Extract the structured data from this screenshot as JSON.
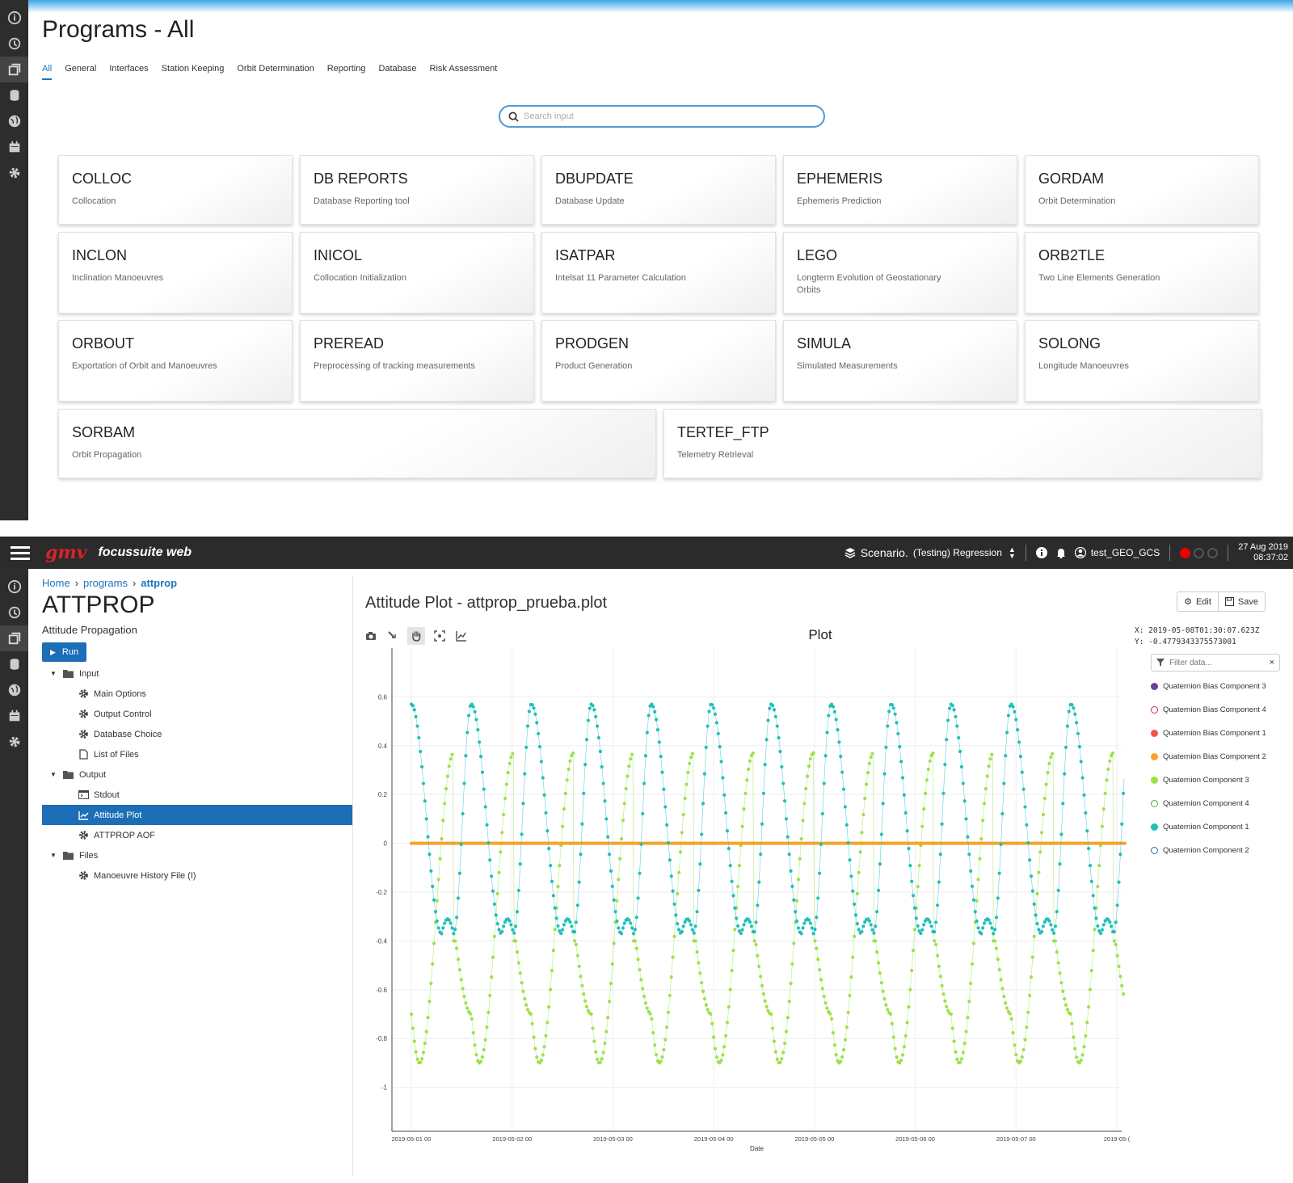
{
  "screen1": {
    "title": "Programs - All",
    "tabs": [
      "All",
      "General",
      "Interfaces",
      "Station Keeping",
      "Orbit Determination",
      "Reporting",
      "Database",
      "Risk Assessment"
    ],
    "search_placeholder": "Search input",
    "programs": [
      {
        "name": "COLLOC",
        "desc": "Collocation"
      },
      {
        "name": "DB REPORTS",
        "desc": "Database Reporting tool"
      },
      {
        "name": "DBUPDATE",
        "desc": "Database Update"
      },
      {
        "name": "EPHEMERIS",
        "desc": "Ephemeris Prediction"
      },
      {
        "name": "GORDAM",
        "desc": "Orbit Determination"
      },
      {
        "name": "INCLON",
        "desc": "Inclination Manoeuvres"
      },
      {
        "name": "INICOL",
        "desc": "Collocation Initialization"
      },
      {
        "name": "ISATPAR",
        "desc": "Intelsat 11 Parameter Calculation"
      },
      {
        "name": "LEGO",
        "desc": "Longterm Evolution of Geostationary Orbits"
      },
      {
        "name": "ORB2TLE",
        "desc": "Two Line Elements Generation"
      },
      {
        "name": "ORBOUT",
        "desc": "Exportation of Orbit and Manoeuvres"
      },
      {
        "name": "PREREAD",
        "desc": "Preprocessing of tracking measurements"
      },
      {
        "name": "PRODGEN",
        "desc": "Product Generation"
      },
      {
        "name": "SIMULA",
        "desc": "Simulated Measurements"
      },
      {
        "name": "SOLONG",
        "desc": "Longitude Manoeuvres"
      },
      {
        "name": "SORBAM",
        "desc": "Orbit Propagation"
      },
      {
        "name": "TERTEF_FTP",
        "desc": "Telemetry Retrieval"
      }
    ]
  },
  "screen2": {
    "app": {
      "logo": "gmv",
      "name": "focussuite web"
    },
    "header": {
      "scenario_label": "Scenario.",
      "scenario_value": "(Testing) Regression",
      "user": "test_GEO_GCS",
      "date": "27 Aug 2019",
      "time": "08:37:02"
    },
    "breadcrumb": [
      "Home",
      "programs",
      "attprop"
    ],
    "program": {
      "title": "ATTPROP",
      "subtitle": "Attitude Propagation",
      "run_label": "Run"
    },
    "tree": [
      {
        "label": "Input",
        "level": 0,
        "icon": "folder-open-icon",
        "name": "tree-input"
      },
      {
        "label": "Main Options",
        "level": 1,
        "icon": "gear-icon",
        "name": "tree-main-options"
      },
      {
        "label": "Output Control",
        "level": 1,
        "icon": "gear-icon",
        "name": "tree-output-control"
      },
      {
        "label": "Database Choice",
        "level": 1,
        "icon": "gear-icon",
        "name": "tree-database-choice"
      },
      {
        "label": "List of Files",
        "level": 1,
        "icon": "file-icon",
        "name": "tree-list-of-files"
      },
      {
        "label": "Output",
        "level": 0,
        "icon": "folder-open-icon",
        "name": "tree-output"
      },
      {
        "label": "Stdout",
        "level": 1,
        "icon": "terminal-icon",
        "name": "tree-stdout"
      },
      {
        "label": "Attitude Plot",
        "level": 1,
        "icon": "line-chart-icon",
        "name": "tree-attitude-plot",
        "selected": true
      },
      {
        "label": "ATTPROP AOF",
        "level": 1,
        "icon": "gear-icon",
        "name": "tree-attprop-aof"
      },
      {
        "label": "Files",
        "level": 0,
        "icon": "folder-open-icon",
        "name": "tree-files"
      },
      {
        "label": "Manoeuvre History File (I)",
        "level": 1,
        "icon": "gear-icon",
        "name": "tree-manoeuvre-history"
      }
    ],
    "plot_panel": {
      "title": "Attitude Plot - attprop_prueba.plot",
      "edit_label": "Edit",
      "save_label": "Save",
      "readout_x": "X: 2019-05-08T01:30:07.623Z",
      "readout_y": "Y: -0.4779343375573001",
      "filter_placeholder": "Filter data..."
    }
  },
  "chart_data": {
    "type": "scatter",
    "title": "Plot",
    "xlabel": "Date",
    "ylabel": "",
    "x_ticks": [
      "2019-05-01 00",
      "2019-05-02 00",
      "2019-05-03 00",
      "2019-05-04 00",
      "2019-05-05 00",
      "2019-05-06 00",
      "2019-05-07 00",
      "2019-05-("
    ],
    "y_ticks": [
      "0.6",
      "0.4",
      "0.2",
      "0",
      "-0.2",
      "-0.4",
      "-0.6",
      "-0.8",
      "-1"
    ],
    "x_range_days": [
      0,
      7.1
    ],
    "ylim": [
      -1.18,
      0.8
    ],
    "grid": true,
    "legend_position": "right",
    "series": [
      {
        "name": "Quaternion Bias Component 3",
        "color": "#6a3fa0",
        "hollow": false,
        "plotted": "zero"
      },
      {
        "name": "Quaternion Bias Component 4",
        "color": "#d6246e",
        "hollow": true,
        "plotted": "zero"
      },
      {
        "name": "Quaternion Bias Component 1",
        "color": "#f0524a",
        "hollow": false,
        "plotted": "zero"
      },
      {
        "name": "Quaternion Bias Component 2",
        "color": "#f5a32b",
        "hollow": false,
        "plotted": "zero"
      },
      {
        "name": "Quaternion Component 3",
        "color": "#9be24a",
        "hollow": false,
        "plotted": "q3"
      },
      {
        "name": "Quaternion Component 4",
        "color": "#35b44a",
        "hollow": true,
        "plotted": "none"
      },
      {
        "name": "Quaternion Component 1",
        "color": "#21bfb9",
        "hollow": false,
        "plotted": "q1"
      },
      {
        "name": "Quaternion Component 2",
        "color": "#1c75bc",
        "hollow": true,
        "plotted": "none"
      }
    ],
    "q1_keypoints": [
      [
        0.0,
        0.57
      ],
      [
        0.3,
        -0.37
      ],
      [
        0.36,
        -0.31
      ],
      [
        0.42,
        -0.37
      ],
      [
        0.57,
        0.57
      ]
    ],
    "q3_keypoints": [
      [
        0.0,
        -0.7
      ],
      [
        0.08,
        -0.9
      ],
      [
        0.42,
        0.37
      ],
      [
        0.44,
        -0.4
      ],
      [
        0.57,
        -0.7
      ]
    ],
    "period_days": 0.595
  }
}
